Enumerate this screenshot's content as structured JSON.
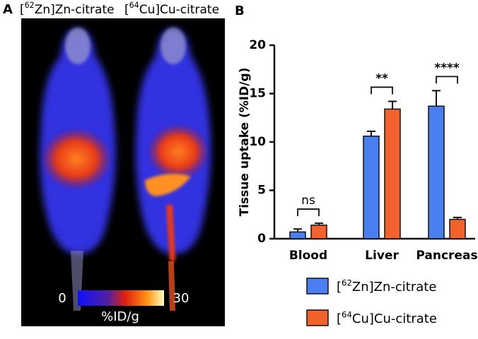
{
  "panel_a": {
    "label": "A",
    "images": [
      "[62Zn]Zn-citrate",
      "[64Cu]Cu-citrate"
    ],
    "colorbar": {
      "min": "0",
      "max": "30",
      "unit": "%ID/g"
    }
  },
  "chart_data": {
    "type": "bar",
    "panel_label": "B",
    "y_label": "Tissue uptake (%ID/g)",
    "categories": [
      "Blood",
      "Liver",
      "Pancreas"
    ],
    "series": [
      {
        "name": "[62Zn]Zn-citrate",
        "color": "#4a7ff0",
        "values": [
          0.7,
          10.6,
          13.7
        ],
        "errors": [
          0.3,
          0.5,
          1.6
        ]
      },
      {
        "name": "[64Cu]Cu-citrate",
        "color": "#f2622c",
        "values": [
          1.4,
          13.4,
          2.0
        ],
        "errors": [
          0.2,
          0.8,
          0.2
        ]
      }
    ],
    "significance": [
      "ns",
      "**",
      "****"
    ],
    "ylim": [
      0,
      20
    ],
    "yticks": [
      0,
      5,
      10,
      15,
      20
    ]
  }
}
